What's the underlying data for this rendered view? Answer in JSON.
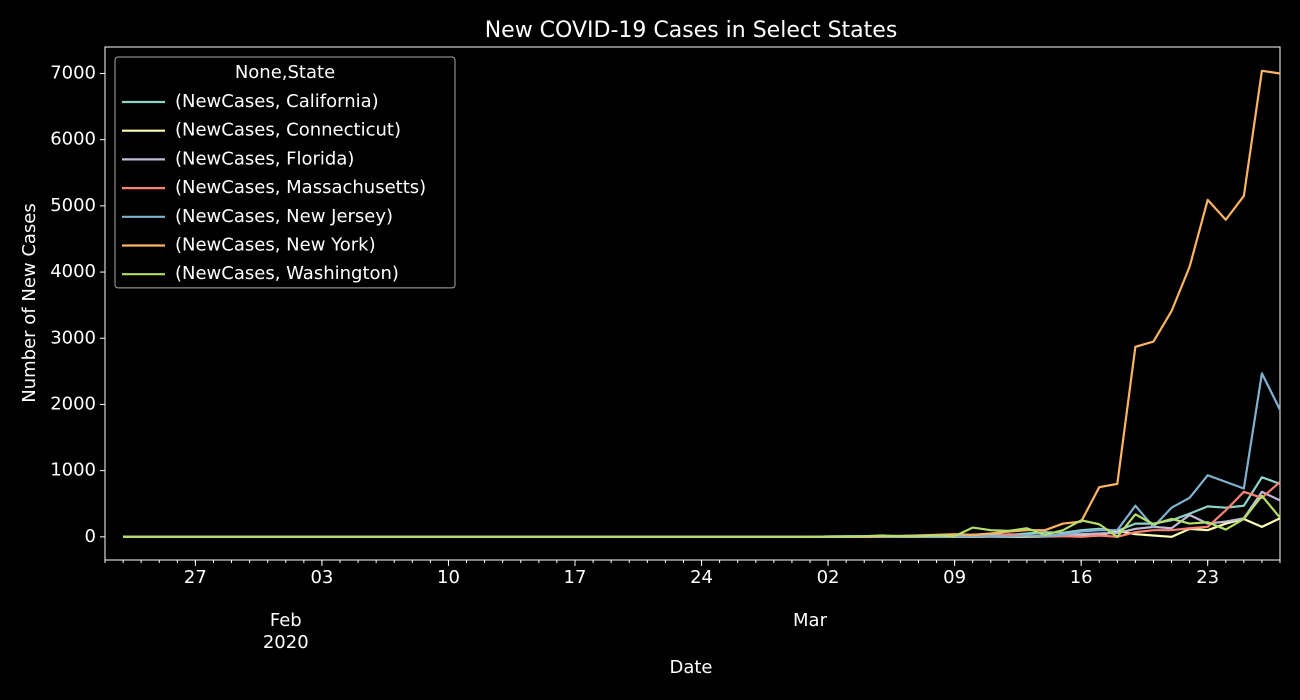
{
  "chart_data": {
    "type": "line",
    "title": "New COVID-19 Cases in Select States",
    "xlabel": "Date",
    "ylabel": "Number of New Cases",
    "x": [
      "2020-01-23",
      "2020-01-24",
      "2020-01-25",
      "2020-01-26",
      "2020-01-27",
      "2020-01-28",
      "2020-01-29",
      "2020-01-30",
      "2020-01-31",
      "2020-02-01",
      "2020-02-02",
      "2020-02-03",
      "2020-02-04",
      "2020-02-05",
      "2020-02-06",
      "2020-02-07",
      "2020-02-08",
      "2020-02-09",
      "2020-02-10",
      "2020-02-11",
      "2020-02-12",
      "2020-02-13",
      "2020-02-14",
      "2020-02-15",
      "2020-02-16",
      "2020-02-17",
      "2020-02-18",
      "2020-02-19",
      "2020-02-20",
      "2020-02-21",
      "2020-02-22",
      "2020-02-23",
      "2020-02-24",
      "2020-02-25",
      "2020-02-26",
      "2020-02-27",
      "2020-02-28",
      "2020-02-29",
      "2020-03-01",
      "2020-03-02",
      "2020-03-03",
      "2020-03-04",
      "2020-03-05",
      "2020-03-06",
      "2020-03-07",
      "2020-03-08",
      "2020-03-09",
      "2020-03-10",
      "2020-03-11",
      "2020-03-12",
      "2020-03-13",
      "2020-03-14",
      "2020-03-15",
      "2020-03-16",
      "2020-03-17",
      "2020-03-18",
      "2020-03-19",
      "2020-03-20",
      "2020-03-21",
      "2020-03-22",
      "2020-03-23",
      "2020-03-24",
      "2020-03-25",
      "2020-03-26",
      "2020-03-27"
    ],
    "series": [
      {
        "name": "(NewCases, California)",
        "color": "#8dd3c7",
        "values": [
          0,
          0,
          0,
          0,
          0,
          0,
          0,
          0,
          0,
          0,
          0,
          0,
          0,
          0,
          0,
          0,
          0,
          0,
          0,
          0,
          0,
          0,
          0,
          0,
          0,
          0,
          0,
          0,
          0,
          0,
          0,
          0,
          0,
          0,
          0,
          0,
          0,
          0,
          0,
          5,
          10,
          10,
          10,
          15,
          20,
          20,
          25,
          30,
          40,
          30,
          50,
          70,
          60,
          100,
          120,
          90,
          200,
          200,
          250,
          350,
          460,
          440,
          470,
          900,
          800
        ]
      },
      {
        "name": "(NewCases, Connecticut)",
        "color": "#feffb3",
        "values": [
          0,
          0,
          0,
          0,
          0,
          0,
          0,
          0,
          0,
          0,
          0,
          0,
          0,
          0,
          0,
          0,
          0,
          0,
          0,
          0,
          0,
          0,
          0,
          0,
          0,
          0,
          0,
          0,
          0,
          0,
          0,
          0,
          0,
          0,
          0,
          0,
          0,
          0,
          0,
          0,
          0,
          0,
          0,
          0,
          0,
          0,
          1,
          1,
          2,
          1,
          2,
          5,
          10,
          10,
          20,
          90,
          40,
          20,
          0,
          120,
          100,
          200,
          270,
          150,
          280
        ]
      },
      {
        "name": "(NewCases, Florida)",
        "color": "#bfbbd9",
        "values": [
          0,
          0,
          0,
          0,
          0,
          0,
          0,
          0,
          0,
          0,
          0,
          0,
          0,
          0,
          0,
          0,
          0,
          0,
          0,
          0,
          0,
          0,
          0,
          0,
          0,
          0,
          0,
          0,
          0,
          0,
          0,
          0,
          0,
          0,
          0,
          0,
          0,
          0,
          0,
          2,
          0,
          2,
          3,
          5,
          5,
          5,
          5,
          5,
          10,
          10,
          20,
          20,
          30,
          40,
          50,
          60,
          120,
          150,
          130,
          330,
          200,
          230,
          280,
          680,
          550
        ]
      },
      {
        "name": "(NewCases, Massachusetts)",
        "color": "#fa8174",
        "values": [
          0,
          0,
          0,
          0,
          0,
          0,
          0,
          0,
          0,
          0,
          0,
          0,
          0,
          0,
          0,
          0,
          0,
          0,
          0,
          0,
          0,
          0,
          0,
          0,
          0,
          0,
          0,
          0,
          0,
          0,
          0,
          0,
          0,
          0,
          0,
          0,
          0,
          0,
          0,
          0,
          0,
          1,
          0,
          5,
          10,
          20,
          10,
          30,
          5,
          40,
          20,
          10,
          10,
          0,
          20,
          0,
          70,
          100,
          100,
          130,
          150,
          400,
          680,
          590,
          830
        ]
      },
      {
        "name": "(NewCases, New Jersey)",
        "color": "#81b1d2",
        "values": [
          0,
          0,
          0,
          0,
          0,
          0,
          0,
          0,
          0,
          0,
          0,
          0,
          0,
          0,
          0,
          0,
          0,
          0,
          0,
          0,
          0,
          0,
          0,
          0,
          0,
          0,
          0,
          0,
          0,
          0,
          0,
          0,
          0,
          0,
          0,
          0,
          0,
          0,
          0,
          0,
          1,
          0,
          1,
          0,
          5,
          0,
          5,
          10,
          10,
          5,
          20,
          10,
          30,
          80,
          100,
          100,
          470,
          150,
          440,
          590,
          930,
          830,
          730,
          2470,
          1920
        ]
      },
      {
        "name": "(NewCases, New York)",
        "color": "#fdb462",
        "values": [
          0,
          0,
          0,
          0,
          0,
          0,
          0,
          0,
          0,
          0,
          0,
          0,
          0,
          0,
          0,
          0,
          0,
          0,
          0,
          0,
          0,
          0,
          0,
          0,
          0,
          0,
          0,
          0,
          0,
          0,
          0,
          0,
          0,
          0,
          0,
          0,
          0,
          0,
          0,
          0,
          1,
          0,
          10,
          10,
          20,
          30,
          40,
          30,
          50,
          80,
          100,
          100,
          200,
          230,
          750,
          800,
          2870,
          2950,
          3410,
          4080,
          5090,
          4790,
          5150,
          7040,
          7000
        ]
      },
      {
        "name": "(NewCases, Washington)",
        "color": "#b3de69",
        "values": [
          0,
          0,
          0,
          0,
          0,
          0,
          0,
          0,
          0,
          0,
          0,
          0,
          0,
          0,
          0,
          0,
          0,
          0,
          0,
          0,
          0,
          0,
          0,
          0,
          0,
          0,
          0,
          0,
          0,
          0,
          0,
          0,
          0,
          0,
          0,
          0,
          0,
          0,
          0,
          5,
          5,
          10,
          20,
          10,
          10,
          20,
          10,
          140,
          100,
          90,
          130,
          30,
          100,
          250,
          190,
          0,
          340,
          190,
          270,
          200,
          220,
          110,
          270,
          620,
          290
        ]
      }
    ],
    "xlim": [
      "2020-01-22",
      "2020-03-27"
    ],
    "xticks": [
      {
        "value": "2020-01-27",
        "label": "27"
      },
      {
        "value": "2020-02-03",
        "label": "03"
      },
      {
        "value": "2020-02-10",
        "label": "10"
      },
      {
        "value": "2020-02-17",
        "label": "17"
      },
      {
        "value": "2020-02-24",
        "label": "24"
      },
      {
        "value": "2020-03-02",
        "label": "02"
      },
      {
        "value": "2020-03-09",
        "label": "09"
      },
      {
        "value": "2020-03-16",
        "label": "16"
      },
      {
        "value": "2020-03-23",
        "label": "23"
      }
    ],
    "xticks_month": [
      {
        "value": "2020-02-01",
        "label": "Feb"
      },
      {
        "value": "2020-03-01",
        "label": "Mar"
      }
    ],
    "year_label": "2020",
    "ylim": [
      -350,
      7400
    ],
    "yticks": [
      0,
      1000,
      2000,
      3000,
      4000,
      5000,
      6000,
      7000
    ],
    "legend_title": "None,State",
    "legend": "upper left"
  }
}
